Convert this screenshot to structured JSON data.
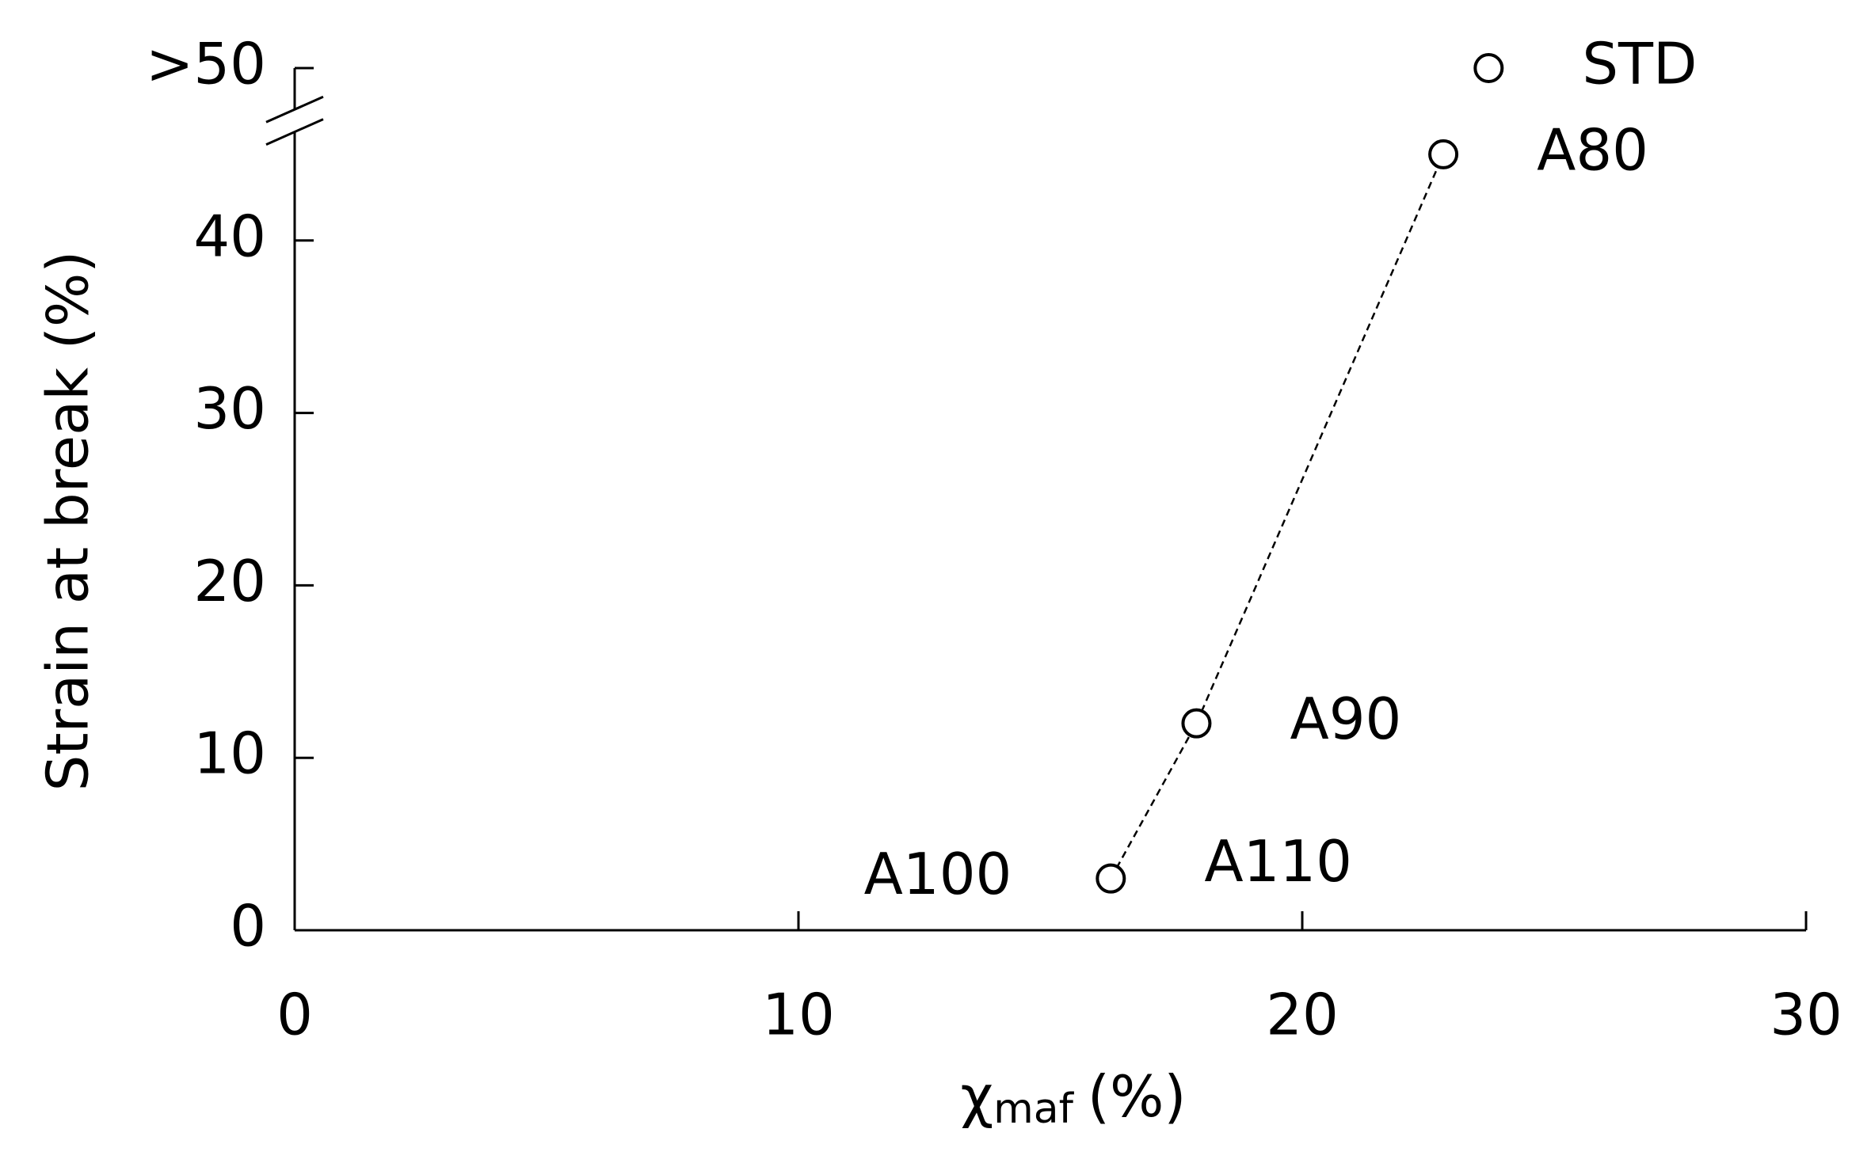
{
  "chart_data": {
    "type": "scatter",
    "ylabel": "Strain at break (%)",
    "xlabel": [
      "χ",
      "maf",
      "(%)"
    ],
    "xlim": [
      0,
      30
    ],
    "xticks": [
      0,
      10,
      20,
      30
    ],
    "ylim": [
      0,
      50
    ],
    "yticks": [
      0,
      10,
      20,
      30,
      40,
      {
        "value": 50,
        "label": ">50"
      }
    ],
    "axis_break": [
      46.3,
      47.6
    ],
    "series": [
      {
        "x": [
          16.2,
          17.9,
          22.8
        ],
        "values": [
          3,
          12,
          45
        ],
        "labels": [
          [
            "A100",
            "A110"
          ],
          [
            "A90"
          ],
          [
            "A80"
          ]
        ],
        "line": "dashed",
        "color": "#000000"
      },
      {
        "x": [
          23.7
        ],
        "values": [
          50
        ],
        "labels": [
          [
            "STD"
          ]
        ],
        "color": "#000000"
      }
    ]
  }
}
